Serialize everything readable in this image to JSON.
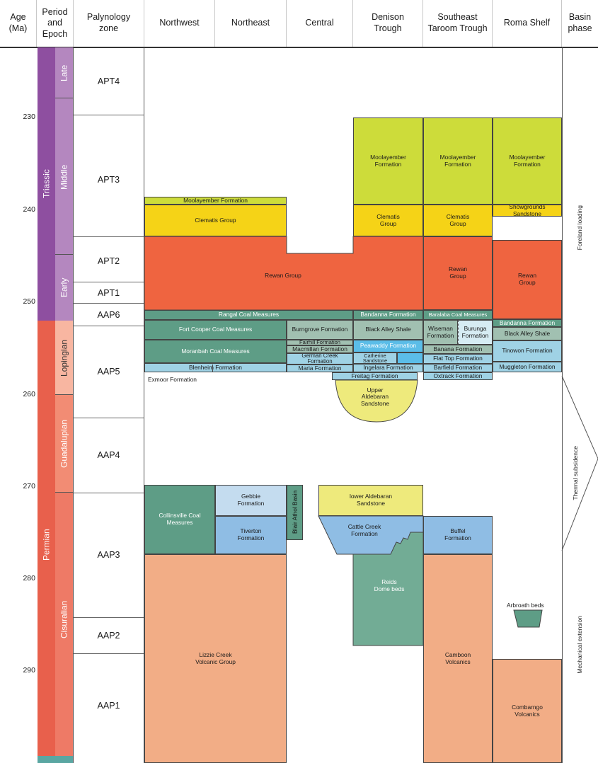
{
  "headers": {
    "age": "Age\n(Ma)",
    "period": "Period\nand\nEpoch",
    "zone": "Palynology\nzone",
    "northwest": "Northwest",
    "northeast": "Northeast",
    "central": "Central",
    "denison": "Denison\nTrough",
    "taroom": "Southeast\nTaroom Trough",
    "roma": "Roma Shelf",
    "phase": "Basin\nphase"
  },
  "ages": [
    "230",
    "240",
    "250",
    "260",
    "270",
    "280",
    "290"
  ],
  "periods": {
    "triassic": "Triassic",
    "permian": "Permian"
  },
  "epochs": {
    "late": "Late",
    "middle": "Middle",
    "early": "Early",
    "lopingian": "Lopingian",
    "guadalupian": "Guadalupian",
    "cisuralian": "Cisuralian"
  },
  "zones": {
    "apt4": "APT4",
    "apt3": "APT3",
    "apt2": "APT2",
    "apt1": "APT1",
    "aap6": "AAP6",
    "aap5": "AAP5",
    "aap4": "AAP4",
    "aap3": "AAP3",
    "aap2": "AAP2",
    "aap1": "AAP1"
  },
  "phases": {
    "foreland": "Foreland loading",
    "thermal": "Thermal subsidence",
    "mechanical": "Mechanical extension"
  },
  "units": {
    "moolayember_nw": "Moolayember Formation",
    "clematis_group": "Clematis Group",
    "rewan_group": "Rewan Group",
    "moolayember_dt": "Moolayember\nFormation",
    "moolayember_st": "Moolayember\nFormation",
    "moolayember_rs": "Moolayember\nFormation",
    "clematis_dt": "Clematis\nGroup",
    "clematis_st": "Clematis\nGroup",
    "showgrounds": "Showgrounds\nSandstone",
    "rewan_st": "Rewan\nGroup",
    "rewan_rs": "Rewan\nGroup",
    "rangal": "Rangal Coal Measures",
    "bandanna_dt": "Bandanna Formation",
    "baralaba": "Baralaba Coal Measures",
    "bandanna_rs": "Bandanna Formation",
    "fort_cooper": "Fort Cooper Coal Measures",
    "burngrove": "Burngrove Formation",
    "black_alley_dt": "Black Alley Shale",
    "wiseman": "Wiseman\nFormation",
    "burunga": "Burunga\nFormation",
    "black_alley_rs": "Black Alley Shale",
    "moranbah": "Moranbah Coal Measures",
    "fairhill": "Fairhill Formation",
    "macmillan": "Macmillan Formation",
    "german_creek": "German Creek\nFormation",
    "peawaddy": "Peawaddy Formation",
    "catherine": "Catherine\nSandstone",
    "banana": "Banana Formation",
    "tinowon": "Tinowon Formation",
    "flat_top": "Flat Top Formation",
    "blenheim": "Blenheim Formation",
    "maria": "Maria Formation",
    "ingelara": "Ingelara Formation",
    "barfield": "Barfield Formation",
    "muggleton": "Muggleton Formation",
    "freitag": "Freitag Formation",
    "oxtrack": "Oxtrack Formation",
    "exmoor": "Exmoor Formation",
    "upper_aldebaran": "Upper\nAldebaran\nSandstone",
    "collinsville": "Collinsville Coal\nMeasures",
    "gebbie": "Gebbie\nFormation",
    "tiverton": "Tiverton\nFormation",
    "blair_athol": "Blair Athol Basin",
    "lower_aldebaran": "lower Aldebaran\nSandstone",
    "cattle_creek": "Cattle Creek\nFormation",
    "buffel": "Buffel\nFormation",
    "reids_dome": "Reids\nDome beds",
    "arbroath": "Arbroath beds",
    "lizzie_creek": "Lizzie Creek\nVolcanic Group",
    "camboon": "Camboon\nVolcanics",
    "combarngo": "Combarngo\nVolcanics"
  },
  "colors": {
    "triassic": "#8e4fa0",
    "triassic_epoch": "#b487bf",
    "permian": "#e8604c",
    "lopingian": "#f8b6a1",
    "guadalupian": "#f28c74",
    "cisuralian": "#ee7a66",
    "moolayember": "#cddc3a",
    "clematis": "#f5d317",
    "rewan": "#ef6440",
    "coal": "#5e9d86",
    "coal_light": "#a1c0b1",
    "blue": "#9fd2e5",
    "blue_bright": "#5bbde8",
    "pale_blue": "#bcdff0",
    "yellow": "#eeea7c",
    "dark_green": "#4e9177",
    "reids": "#72ac95",
    "orange": "#f2ad86",
    "gebbie": "#c4dcef",
    "tiverton": "#8fbde4"
  }
}
